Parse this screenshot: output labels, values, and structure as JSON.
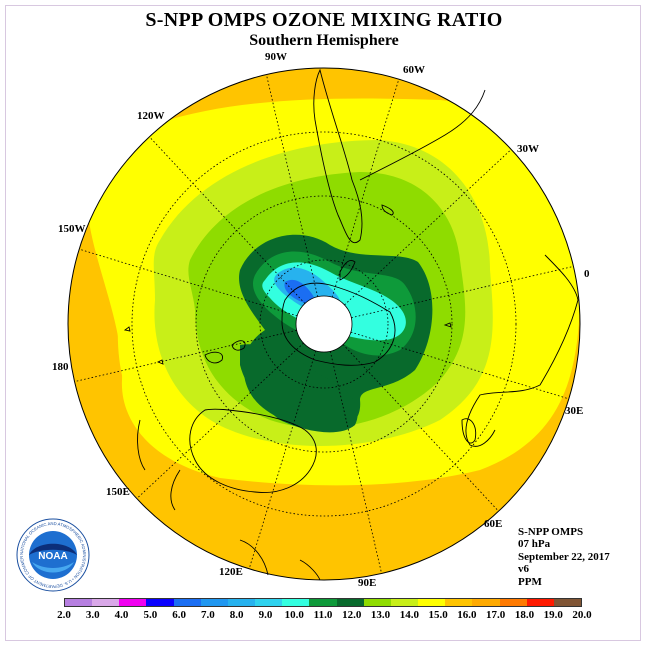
{
  "title": "S-NPP OMPS OZONE MIXING RATIO",
  "subtitle": "Southern Hemisphere",
  "longitude_labels": [
    "90W",
    "60W",
    "30W",
    "0",
    "30E",
    "60E",
    "90E",
    "120E",
    "150E",
    "180",
    "150W",
    "120W"
  ],
  "info": {
    "instrument": "S-NPP OMPS",
    "level": "07 hPa",
    "date": "September 22, 2017",
    "version": "v6",
    "units": "PPM"
  },
  "colorbar": {
    "labels": [
      "2.0",
      "3.0",
      "4.0",
      "5.0",
      "6.0",
      "7.0",
      "8.0",
      "9.0",
      "10.0",
      "11.0",
      "12.0",
      "13.0",
      "14.0",
      "15.0",
      "16.0",
      "17.0",
      "18.0",
      "19.0",
      "20.0"
    ],
    "colors": [
      "#b67fe0",
      "#d9a8e8",
      "#f000f0",
      "#0a00ff",
      "#1b6ef2",
      "#2097f0",
      "#27b2ee",
      "#2fd2ee",
      "#33ffe0",
      "#0e9a3a",
      "#086a2c",
      "#8fdc00",
      "#c8ef18",
      "#ffff00",
      "#ffc400",
      "#ffaa00",
      "#ff7a00",
      "#ff1a00",
      "#805535"
    ]
  },
  "logo": {
    "text": "NOAA",
    "ring_text": "NATIONAL OCEANIC AND ATMOSPHERIC ADMINISTRATION • U.S. DEPARTMENT OF COMMERCE"
  }
}
